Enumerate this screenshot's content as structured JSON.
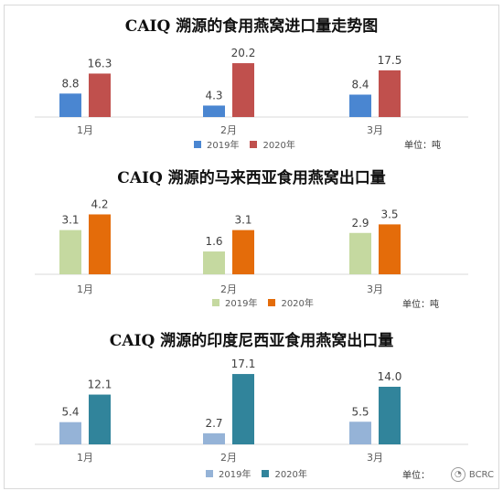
{
  "chart_data": [
    {
      "type": "bar",
      "title": "CAIQ 溯源的食用燕窝进口量走势图",
      "categories": [
        "1月",
        "2月",
        "3月"
      ],
      "series": [
        {
          "name": "2019年",
          "values": [
            8.8,
            4.3,
            8.4
          ],
          "color": "#4a86d1"
        },
        {
          "name": "2020年",
          "values": [
            16.3,
            20.2,
            17.5
          ],
          "color": "#c0504d"
        }
      ],
      "ylim": [
        0,
        24
      ],
      "unit": "单位：吨",
      "legend": "bottom"
    },
    {
      "type": "bar",
      "title": "CAIQ 溯源的马来西亚食用燕窝出口量",
      "categories": [
        "1月",
        "2月",
        "3月"
      ],
      "series": [
        {
          "name": "2019年",
          "values": [
            3.1,
            1.6,
            2.9
          ],
          "color": "#c5d9a0"
        },
        {
          "name": "2020年",
          "values": [
            4.2,
            3.1,
            3.5
          ],
          "color": "#e46c0a"
        }
      ],
      "ylim": [
        0,
        5
      ],
      "unit": "单位：吨",
      "legend": "bottom"
    },
    {
      "type": "bar",
      "title": "CAIQ 溯源的印度尼西亚食用燕窝出口量",
      "categories": [
        "1月",
        "2月",
        "3月"
      ],
      "series": [
        {
          "name": "2019年",
          "values": [
            5.4,
            2.7,
            5.5
          ],
          "color": "#95b3d7"
        },
        {
          "name": "2020年",
          "values": [
            12.1,
            17.1,
            14.0
          ],
          "color": "#31849b"
        }
      ],
      "ylim": [
        0,
        20
      ],
      "unit": "单位：",
      "legend": "bottom"
    }
  ],
  "watermark": {
    "text": "BCRC",
    "icon": "wechat-icon"
  }
}
